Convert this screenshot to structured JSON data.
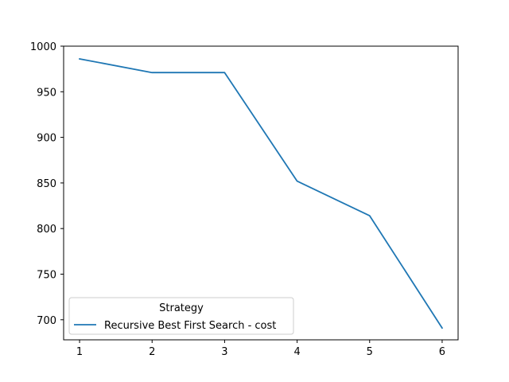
{
  "chart_data": {
    "type": "line",
    "x": [
      1,
      2,
      3,
      4,
      5,
      6
    ],
    "series": [
      {
        "name": "Recursive Best First Search - cost",
        "values": [
          986,
          971,
          971,
          852,
          814,
          691
        ],
        "color": "#1f77b4"
      }
    ],
    "xlim": [
      0.78,
      6.22
    ],
    "ylim": [
      678,
      1000
    ],
    "xticks": [
      1,
      2,
      3,
      4,
      5,
      6
    ],
    "yticks": [
      700,
      750,
      800,
      850,
      900,
      950,
      1000
    ],
    "legend": {
      "title": "Strategy",
      "placement": "lower-left"
    },
    "grid": false
  }
}
